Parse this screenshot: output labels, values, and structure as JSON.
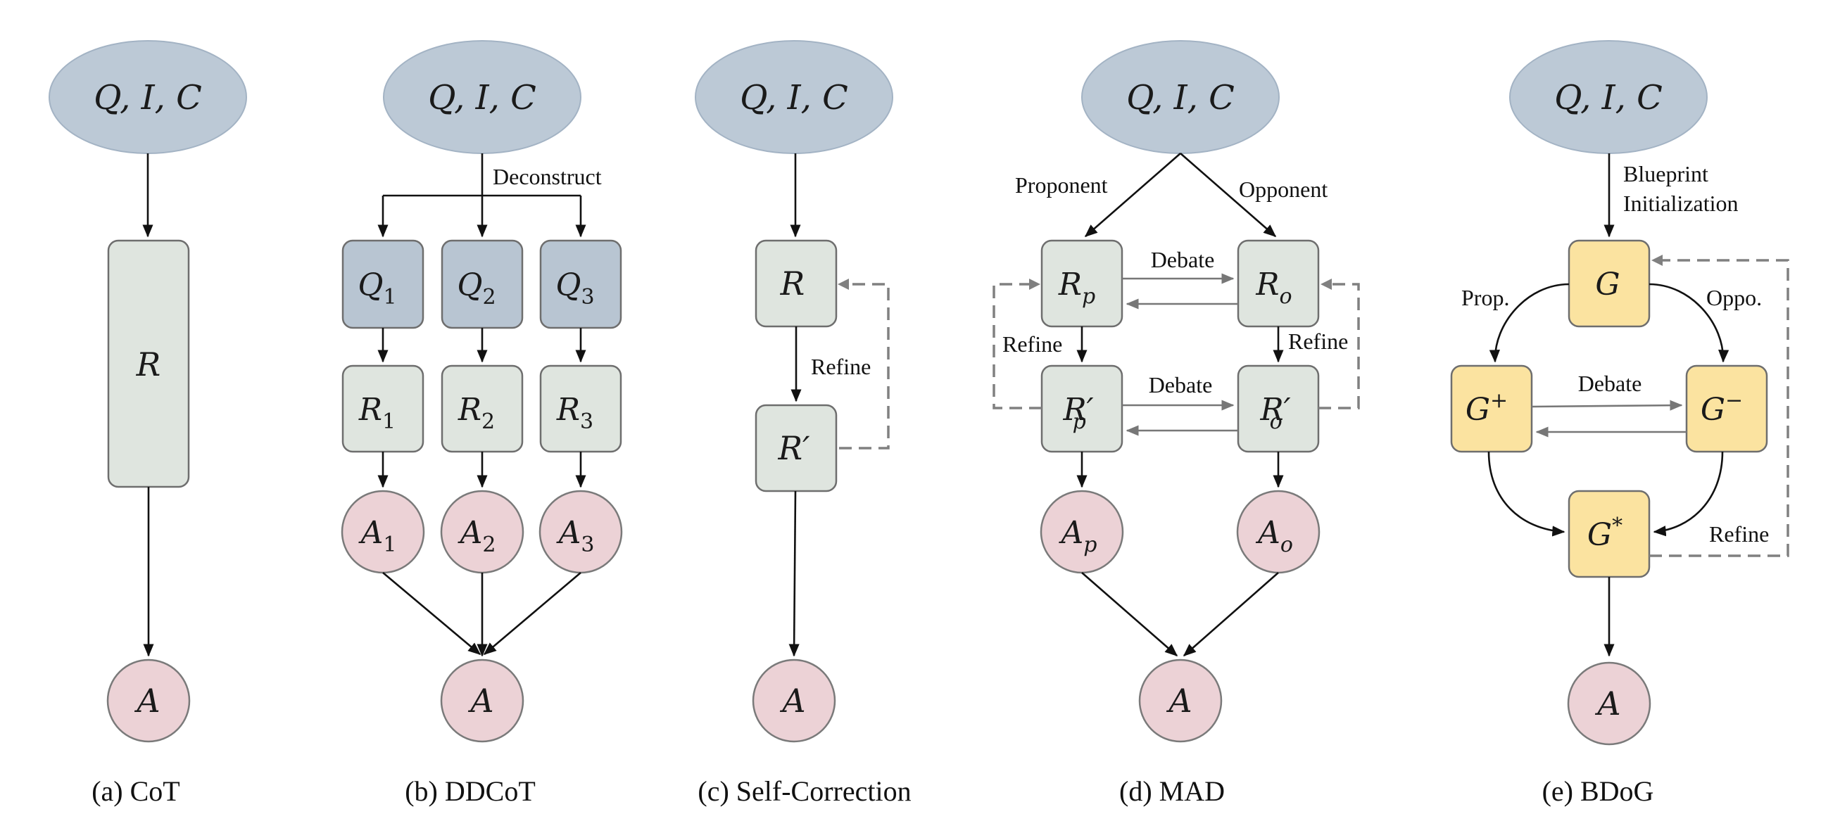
{
  "panels": {
    "cot": {
      "caption": "(a) CoT",
      "input": "Q, I, C",
      "reasoning": "R",
      "answer": "A"
    },
    "ddcot": {
      "caption": "(b) DDCoT",
      "input": "Q, I, C",
      "edge_label": "Deconstruct",
      "subquestions": [
        {
          "q": "Q",
          "sub": "1"
        },
        {
          "q": "Q",
          "sub": "2"
        },
        {
          "q": "Q",
          "sub": "3"
        }
      ],
      "rationales": [
        {
          "r": "R",
          "sub": "1"
        },
        {
          "r": "R",
          "sub": "2"
        },
        {
          "r": "R",
          "sub": "3"
        }
      ],
      "answers": [
        {
          "a": "A",
          "sub": "1"
        },
        {
          "a": "A",
          "sub": "2"
        },
        {
          "a": "A",
          "sub": "3"
        }
      ],
      "final_answer": "A"
    },
    "self_correction": {
      "caption": "(c) Self-Correction",
      "input": "Q, I, C",
      "reasoning": "R",
      "refined": "R′",
      "edge_label": "Refine",
      "answer": "A"
    },
    "mad": {
      "caption": "(d) MAD",
      "input": "Q, I, C",
      "proponent_label": "Proponent",
      "opponent_label": "Opponent",
      "debate_label_top": "Debate",
      "debate_label_bottom": "Debate",
      "refine_label_left": "Refine",
      "refine_label_right": "Refine",
      "rp": {
        "base": "R",
        "sub": "p"
      },
      "ro": {
        "base": "R",
        "sub": "o"
      },
      "rp_prime": {
        "base": "R′",
        "sub": "p"
      },
      "ro_prime": {
        "base": "R′",
        "sub": "o"
      },
      "ap": {
        "base": "A",
        "sub": "p"
      },
      "ao": {
        "base": "A",
        "sub": "o"
      },
      "final_answer": "A"
    },
    "bdog": {
      "caption": "(e) BDoG",
      "input": "Q, I, C",
      "init_label_1": "Blueprint",
      "init_label_2": "Initialization",
      "graph": "G",
      "prop_label": "Prop.",
      "oppo_label": "Oppo.",
      "debate_label": "Debate",
      "refine_label": "Refine",
      "g_plus": {
        "base": "G",
        "sup": "+"
      },
      "g_minus": {
        "base": "G",
        "sup": "−"
      },
      "g_star": {
        "base": "G",
        "sup": "*"
      },
      "final_answer": "A"
    }
  },
  "colors": {
    "input_ellipse": "#bcc9d6",
    "reasoning_box": "#dfe5df",
    "question_box": "#b8c5d2",
    "graph_box": "#fbe3a0",
    "answer_circle": "#ecd2d6"
  }
}
